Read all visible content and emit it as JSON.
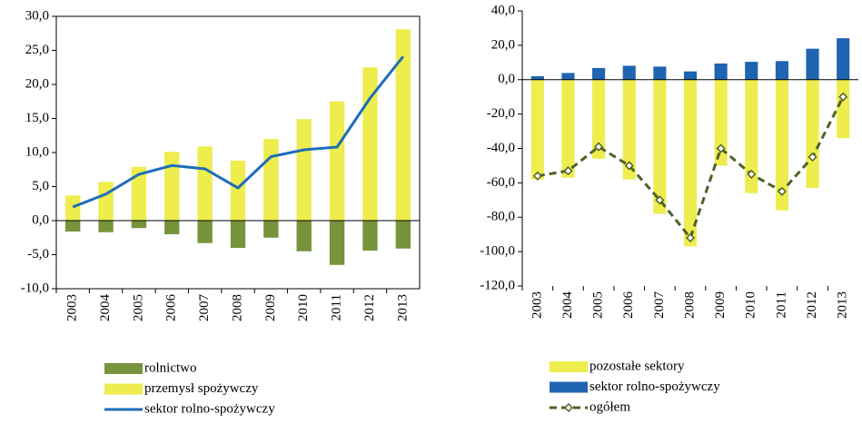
{
  "chart_data": [
    {
      "type": "combo",
      "categories": [
        "2003",
        "2004",
        "2005",
        "2006",
        "2007",
        "2008",
        "2009",
        "2010",
        "2011",
        "2012",
        "2013"
      ],
      "series": [
        {
          "name": "rolnictwo",
          "kind": "bar",
          "color": "#77933c",
          "values": [
            -1.6,
            -1.7,
            -1.1,
            -2.0,
            -3.3,
            -4.0,
            -2.5,
            -4.5,
            -6.5,
            -4.4,
            -4.1
          ]
        },
        {
          "name": "przemysł spożywczy",
          "kind": "bar",
          "color": "#eded4e",
          "values": [
            3.7,
            5.7,
            7.9,
            10.1,
            10.9,
            8.8,
            12.0,
            14.9,
            17.5,
            22.5,
            28.1
          ]
        },
        {
          "name": "sektor rolno-spożywczy",
          "kind": "line",
          "color": "#1f6cb8",
          "values": [
            2.0,
            3.9,
            6.8,
            8.1,
            7.6,
            4.8,
            9.4,
            10.4,
            10.8,
            18.0,
            24.1
          ]
        }
      ],
      "ylim": [
        -10,
        30
      ],
      "yticks": [
        {
          "value": -10,
          "label": "-10,0"
        },
        {
          "value": -5,
          "label": "-5,0"
        },
        {
          "value": 0,
          "label": "0,0"
        },
        {
          "value": 5,
          "label": "5,0"
        },
        {
          "value": 10,
          "label": "10,0"
        },
        {
          "value": 15,
          "label": "15,0"
        },
        {
          "value": 20,
          "label": "20,0"
        },
        {
          "value": 25,
          "label": "25,0"
        },
        {
          "value": 30,
          "label": "30,0"
        }
      ],
      "grid": false
    },
    {
      "type": "combo",
      "categories": [
        "2003",
        "2004",
        "2005",
        "2006",
        "2007",
        "2008",
        "2009",
        "2010",
        "2011",
        "2012",
        "2013"
      ],
      "series": [
        {
          "name": "pozostałe sektory",
          "kind": "bar",
          "color": "#eded4e",
          "values": [
            -58,
            -57,
            -46,
            -58,
            -78,
            -97,
            -50,
            -66,
            -76,
            -63,
            -34
          ]
        },
        {
          "name": "sektor rolno-spożywczy",
          "kind": "bar",
          "color": "#1f64b0",
          "values": [
            2.0,
            3.9,
            6.8,
            8.1,
            7.6,
            4.8,
            9.4,
            10.4,
            10.8,
            18.0,
            24.1
          ]
        },
        {
          "name": "ogółem",
          "kind": "dashed-line",
          "color": "#4f6228",
          "values": [
            -56,
            -53,
            -39,
            -50,
            -70,
            -92,
            -40,
            -55,
            -65,
            -45,
            -10
          ]
        }
      ],
      "ylim": [
        -120,
        40
      ],
      "yticks": [
        {
          "value": -120,
          "label": "-120,0"
        },
        {
          "value": -100,
          "label": "-100,0"
        },
        {
          "value": -80,
          "label": "-80,0"
        },
        {
          "value": -60,
          "label": "-60,0"
        },
        {
          "value": -40,
          "label": "-40,0"
        },
        {
          "value": -20,
          "label": "-20,0"
        },
        {
          "value": 0,
          "label": "0,0"
        },
        {
          "value": 20,
          "label": "20,0"
        },
        {
          "value": 40,
          "label": "40,0"
        }
      ],
      "grid": false
    }
  ]
}
